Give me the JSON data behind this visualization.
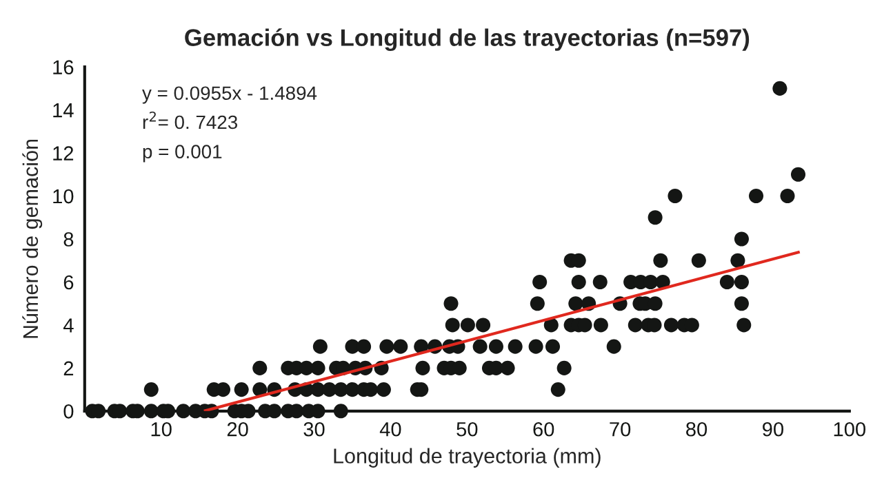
{
  "chart_data": {
    "type": "scatter",
    "title": "Gemación vs Longitud de las trayectorias (n=597)",
    "xlabel": "Longitud de trayectoria (mm)",
    "ylabel": "Número de gemación",
    "annotations": [
      "y = 0.0955x - 1.4894",
      "r$^{2}$= 0. 7423",
      "p = 0.001"
    ],
    "series": [
      {
        "color": "#141614",
        "marker": "circle",
        "x": [
          1.0,
          1.8,
          3.9,
          4.6,
          6.3,
          6.9,
          8.7,
          10.3,
          10.9,
          12.9,
          14.5,
          15.7,
          16.6,
          19.6,
          20.5,
          21.4,
          23.6,
          24.8,
          26.6,
          27.7,
          29.3,
          30.5,
          33.5,
          8.7,
          16.9,
          18.1,
          20.5,
          22.9,
          24.8,
          27.5,
          29.0,
          30.5,
          32.0,
          33.5,
          35.0,
          36.5,
          37.4,
          39.1,
          43.5,
          44.0,
          61.9,
          22.9,
          26.6,
          27.7,
          29.0,
          30.5,
          32.9,
          33.8,
          35.4,
          36.7,
          38.8,
          44.2,
          47.0,
          47.9,
          49.0,
          52.9,
          53.8,
          55.3,
          62.7,
          30.8,
          35.0,
          36.5,
          39.5,
          41.3,
          44.0,
          45.8,
          47.7,
          48.8,
          51.7,
          53.8,
          56.3,
          59.0,
          61.2,
          69.2,
          48.1,
          50.1,
          52.1,
          61.0,
          63.6,
          64.6,
          65.4,
          67.5,
          72.0,
          73.7,
          74.5,
          76.7,
          78.4,
          79.4,
          86.2,
          47.9,
          59.2,
          64.2,
          65.9,
          70.0,
          72.6,
          73.3,
          74.6,
          85.9,
          59.5,
          64.6,
          67.4,
          71.4,
          72.7,
          74.0,
          75.6,
          84.0,
          85.9,
          63.6,
          64.6,
          75.3,
          80.3,
          85.4,
          85.9,
          74.6,
          77.2,
          87.8,
          91.9,
          93.3,
          90.9
        ],
        "values": [
          0,
          0,
          0,
          0,
          0,
          0,
          0,
          0,
          0,
          0,
          0,
          0,
          0,
          0,
          0,
          0,
          0,
          0,
          0,
          0,
          0,
          0,
          0,
          1,
          1,
          1,
          1,
          1,
          1,
          1,
          1,
          1,
          1,
          1,
          1,
          1,
          1,
          1,
          1,
          1,
          1,
          2,
          2,
          2,
          2,
          2,
          2,
          2,
          2,
          2,
          2,
          2,
          2,
          2,
          2,
          2,
          2,
          2,
          2,
          3,
          3,
          3,
          3,
          3,
          3,
          3,
          3,
          3,
          3,
          3,
          3,
          3,
          3,
          3,
          4,
          4,
          4,
          4,
          4,
          4,
          4,
          4,
          4,
          4,
          4,
          4,
          4,
          4,
          4,
          5,
          5,
          5,
          5,
          5,
          5,
          5,
          5,
          5,
          6,
          6,
          6,
          6,
          6,
          6,
          6,
          6,
          6,
          7,
          7,
          7,
          7,
          7,
          8,
          9,
          10,
          10,
          10,
          11,
          15
        ]
      },
      {
        "type": "line",
        "color": "#e0281e",
        "x": [
          15.6,
          93.5
        ],
        "values": [
          0,
          7.4
        ]
      }
    ],
    "grid": false,
    "legend": false,
    "xlim": [
      0,
      100
    ],
    "xticks": [
      10,
      20,
      30,
      40,
      50,
      60,
      70,
      80,
      90,
      100
    ],
    "ylim": [
      0,
      16
    ],
    "yticks": [
      0,
      2,
      4,
      6,
      8,
      10,
      12,
      14,
      16
    ]
  }
}
